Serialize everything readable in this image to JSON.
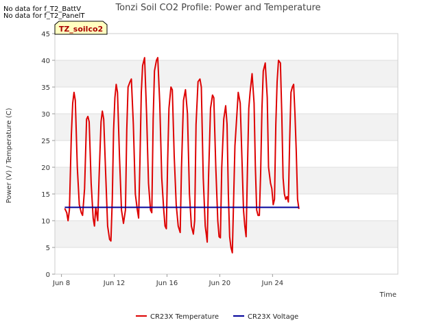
{
  "notes": {
    "line1": "No data for f_T2_BattV",
    "line2": "No data for f_T2_PanelT"
  },
  "site_badge": "TZ_soilco2",
  "colors": {
    "temperature": "#dd0000",
    "voltage": "#000099",
    "band": "#f2f2f2",
    "grid": "#dddddd",
    "badge_bg": "#ffffc0"
  },
  "chart_data": {
    "type": "line",
    "title": "Tonzi Soil CO2 Profile: Power and Temperature",
    "xlabel": "Time",
    "ylabel": "Power (V) / Temperature (C)",
    "x_unit": "days since Jun 8",
    "xlim": [
      -0.5,
      25.5
    ],
    "ylim": [
      0,
      45
    ],
    "x_ticks": [
      {
        "x": 0,
        "label": "Jun 8"
      },
      {
        "x": 4,
        "label": "Jun 12"
      },
      {
        "x": 8,
        "label": "Jun 16"
      },
      {
        "x": 12,
        "label": "Jun 20"
      },
      {
        "x": 16,
        "label": "Jun 24"
      }
    ],
    "y_ticks": [
      0,
      5,
      10,
      15,
      20,
      25,
      30,
      35,
      40,
      45
    ],
    "grid": true,
    "legend_position": "bottom",
    "series": [
      {
        "name": "CR23X Temperature",
        "color": "#dd0000",
        "points": [
          [
            0.25,
            12.3
          ],
          [
            0.4,
            11.5
          ],
          [
            0.5,
            10.0
          ],
          [
            0.6,
            12.0
          ],
          [
            0.75,
            26.0
          ],
          [
            0.85,
            32.0
          ],
          [
            0.95,
            34.0
          ],
          [
            1.05,
            32.5
          ],
          [
            1.2,
            20.0
          ],
          [
            1.35,
            13.0
          ],
          [
            1.5,
            11.5
          ],
          [
            1.6,
            11.0
          ],
          [
            1.75,
            16.0
          ],
          [
            1.9,
            29.0
          ],
          [
            2.0,
            29.5
          ],
          [
            2.1,
            28.5
          ],
          [
            2.25,
            17.0
          ],
          [
            2.4,
            10.5
          ],
          [
            2.5,
            9.0
          ],
          [
            2.6,
            12.5
          ],
          [
            2.75,
            10.0
          ],
          [
            2.85,
            18.0
          ],
          [
            3.0,
            28.5
          ],
          [
            3.1,
            30.5
          ],
          [
            3.2,
            29.0
          ],
          [
            3.35,
            19.0
          ],
          [
            3.5,
            9.0
          ],
          [
            3.65,
            6.5
          ],
          [
            3.75,
            6.2
          ],
          [
            3.85,
            14.0
          ],
          [
            3.95,
            27.0
          ],
          [
            4.05,
            33.0
          ],
          [
            4.15,
            35.5
          ],
          [
            4.25,
            34.0
          ],
          [
            4.4,
            22.0
          ],
          [
            4.55,
            12.0
          ],
          [
            4.7,
            9.5
          ],
          [
            4.85,
            12.0
          ],
          [
            4.95,
            27.0
          ],
          [
            5.05,
            35.0
          ],
          [
            5.2,
            36.0
          ],
          [
            5.3,
            36.5
          ],
          [
            5.45,
            28.0
          ],
          [
            5.6,
            15.0
          ],
          [
            5.75,
            12.0
          ],
          [
            5.85,
            10.5
          ],
          [
            5.95,
            21.0
          ],
          [
            6.05,
            34.0
          ],
          [
            6.15,
            39.0
          ],
          [
            6.3,
            40.5
          ],
          [
            6.45,
            30.0
          ],
          [
            6.6,
            17.0
          ],
          [
            6.75,
            12.0
          ],
          [
            6.85,
            11.5
          ],
          [
            6.95,
            29.0
          ],
          [
            7.05,
            38.0
          ],
          [
            7.2,
            40.0
          ],
          [
            7.3,
            40.5
          ],
          [
            7.45,
            32.0
          ],
          [
            7.6,
            18.0
          ],
          [
            7.75,
            12.0
          ],
          [
            7.85,
            9.0
          ],
          [
            7.95,
            8.5
          ],
          [
            8.05,
            21.0
          ],
          [
            8.15,
            31.0
          ],
          [
            8.3,
            35.0
          ],
          [
            8.4,
            34.5
          ],
          [
            8.55,
            22.0
          ],
          [
            8.7,
            13.0
          ],
          [
            8.85,
            9.0
          ],
          [
            9.0,
            7.8
          ],
          [
            9.1,
            20.0
          ],
          [
            9.25,
            32.5
          ],
          [
            9.4,
            34.5
          ],
          [
            9.55,
            30.0
          ],
          [
            9.7,
            15.0
          ],
          [
            9.85,
            9.0
          ],
          [
            10.0,
            7.5
          ],
          [
            10.1,
            10.0
          ],
          [
            10.2,
            28.0
          ],
          [
            10.35,
            36.0
          ],
          [
            10.5,
            36.5
          ],
          [
            10.6,
            35.0
          ],
          [
            10.75,
            18.0
          ],
          [
            10.9,
            9.0
          ],
          [
            11.0,
            7.0
          ],
          [
            11.05,
            6.0
          ],
          [
            11.15,
            18.0
          ],
          [
            11.3,
            31.0
          ],
          [
            11.45,
            33.5
          ],
          [
            11.55,
            33.0
          ],
          [
            11.7,
            20.0
          ],
          [
            11.85,
            10.0
          ],
          [
            11.95,
            7.0
          ],
          [
            12.05,
            6.8
          ],
          [
            12.15,
            20.0
          ],
          [
            12.3,
            29.0
          ],
          [
            12.45,
            31.5
          ],
          [
            12.55,
            28.0
          ],
          [
            12.65,
            15.0
          ],
          [
            12.75,
            7.0
          ],
          [
            12.85,
            5.0
          ],
          [
            12.95,
            4.0
          ],
          [
            13.05,
            14.0
          ],
          [
            13.15,
            24.0
          ],
          [
            13.3,
            30.0
          ],
          [
            13.4,
            34.0
          ],
          [
            13.55,
            32.0
          ],
          [
            13.7,
            20.0
          ],
          [
            13.8,
            12.0
          ],
          [
            13.9,
            9.0
          ],
          [
            14.0,
            7.0
          ],
          [
            14.1,
            20.0
          ],
          [
            14.2,
            31.0
          ],
          [
            14.3,
            34.0
          ],
          [
            14.45,
            37.5
          ],
          [
            14.6,
            32.0
          ],
          [
            14.7,
            20.0
          ],
          [
            14.8,
            12.0
          ],
          [
            14.9,
            11.0
          ],
          [
            15.0,
            11.0
          ],
          [
            15.1,
            19.0
          ],
          [
            15.2,
            31.0
          ],
          [
            15.3,
            38.0
          ],
          [
            15.45,
            39.5
          ],
          [
            15.6,
            33.0
          ],
          [
            15.7,
            20.0
          ],
          [
            15.85,
            17.0
          ],
          [
            15.95,
            16.0
          ],
          [
            16.05,
            13.0
          ],
          [
            16.15,
            14.0
          ],
          [
            16.25,
            28.0
          ],
          [
            16.35,
            36.0
          ],
          [
            16.45,
            40.0
          ],
          [
            16.6,
            39.5
          ],
          [
            16.7,
            30.0
          ],
          [
            16.8,
            18.0
          ],
          [
            16.9,
            15.0
          ],
          [
            17.0,
            14.0
          ],
          [
            17.1,
            14.5
          ],
          [
            17.2,
            13.5
          ],
          [
            17.3,
            25.0
          ],
          [
            17.4,
            34.0
          ],
          [
            17.5,
            35.0
          ],
          [
            17.6,
            35.5
          ],
          [
            17.7,
            30.0
          ],
          [
            17.8,
            23.0
          ],
          [
            17.9,
            14.0
          ],
          [
            18.0,
            12.2
          ]
        ]
      },
      {
        "name": "CR23X Voltage",
        "color": "#000099",
        "points": [
          [
            0.25,
            12.5
          ],
          [
            18.0,
            12.5
          ]
        ]
      }
    ]
  }
}
